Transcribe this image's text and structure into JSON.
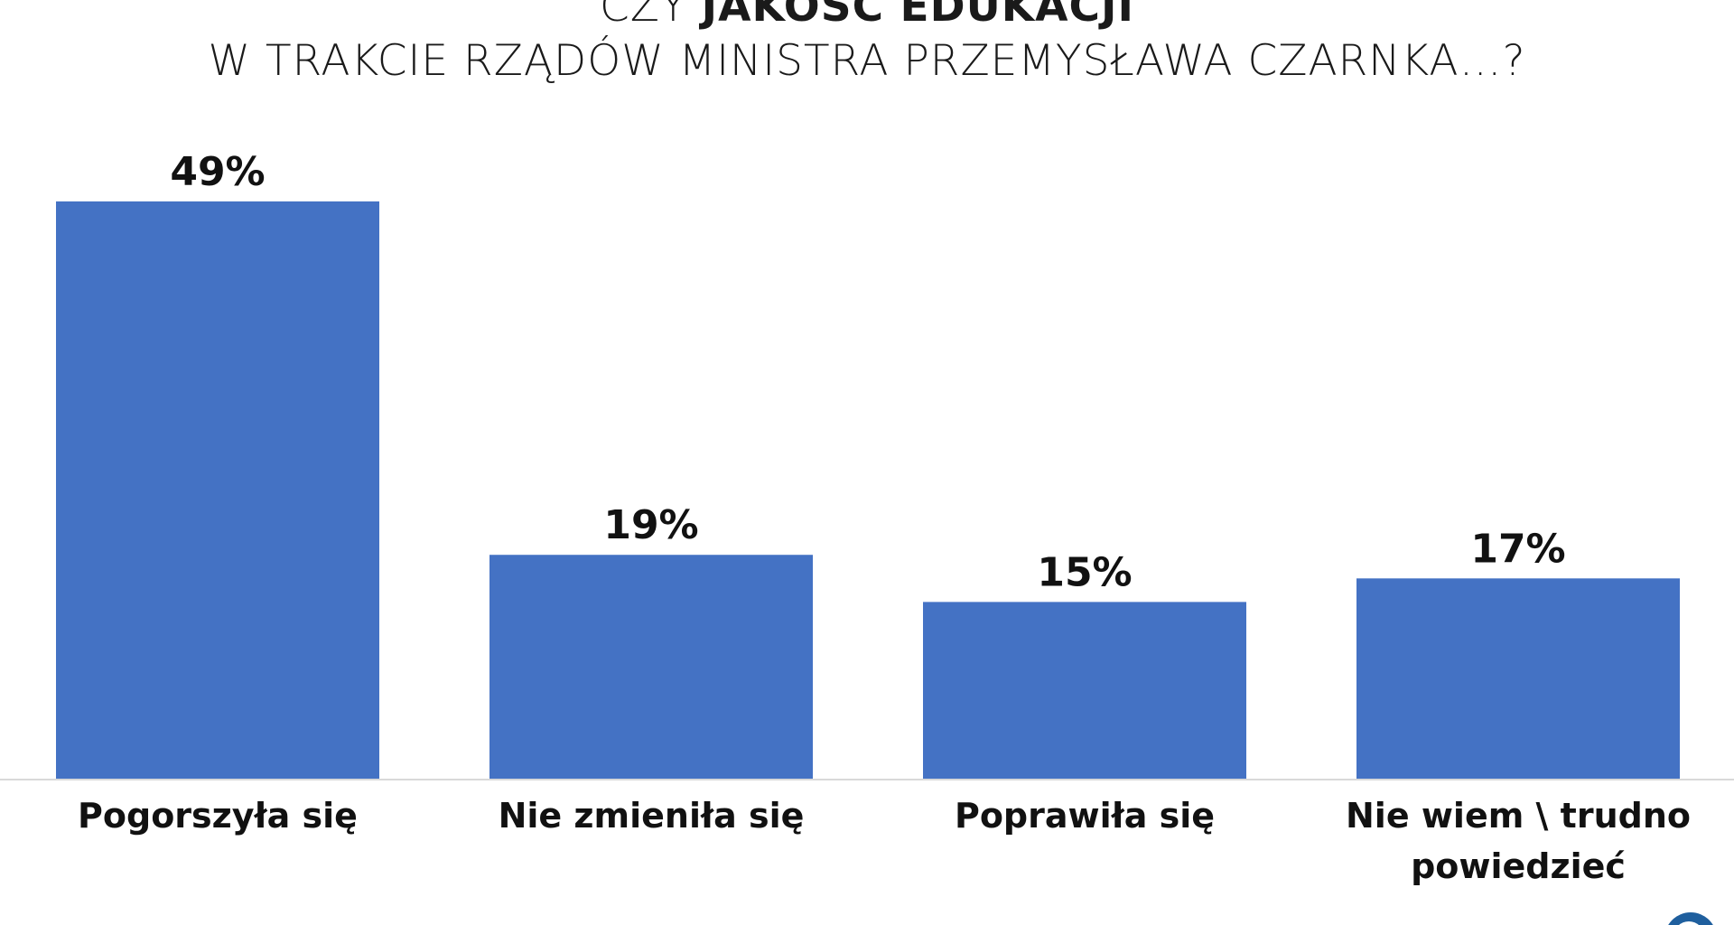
{
  "chart_data": {
    "type": "bar",
    "title_line1_normal": "CZY ",
    "title_line1_bold": "JAKOŚĆ EDUKACJI",
    "title_line2": "W TRAKCIE RZĄDÓW MINISTRA PRZEMYSŁAWA CZARNKA…?",
    "categories": [
      "Pogorszyła się",
      "Nie zmieniła się",
      "Poprawiła się",
      "Nie wiem \\ trudno powiedzieć"
    ],
    "category_lines": [
      [
        "Pogorszyła się"
      ],
      [
        "Nie zmieniła się"
      ],
      [
        "Poprawiła się"
      ],
      [
        "Nie wiem \\ trudno",
        "powiedzieć"
      ]
    ],
    "values": [
      49,
      19,
      15,
      17
    ],
    "value_labels": [
      "49%",
      "19%",
      "15%",
      "17%"
    ],
    "ylim": [
      0,
      49
    ],
    "grid": false,
    "legend": "none",
    "bar_color": "#4472C4",
    "baseline_color": "#d9d9d9"
  },
  "logo": {
    "name": "logo-icon",
    "color": "#1f5f9e"
  }
}
